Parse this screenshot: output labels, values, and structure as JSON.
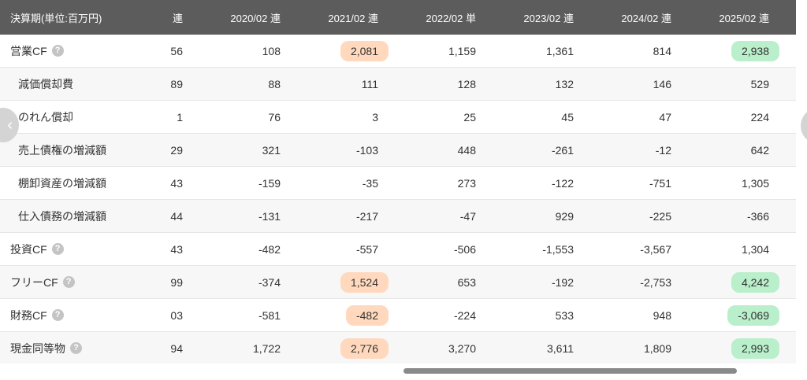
{
  "header": {
    "label": "決算期(単位:百万円)",
    "columns": [
      "連",
      "2020/02 連",
      "2021/02 連",
      "2022/02 単",
      "2023/02 連",
      "2024/02 連",
      "2025/02 連"
    ]
  },
  "help_glyph": "?",
  "nav": {
    "prev_glyph": "‹"
  },
  "colors": {
    "header_bg": "#5c5c5c",
    "highlight_orange": "#ffd8bd",
    "highlight_green": "#b9efcb"
  },
  "rows": [
    {
      "label": "営業CF",
      "values": [
        "56",
        "108",
        "2,081",
        "1,159",
        "1,361",
        "814",
        "2,938"
      ]
    },
    {
      "label": "減価償却費",
      "values": [
        "89",
        "88",
        "111",
        "128",
        "132",
        "146",
        "529"
      ]
    },
    {
      "label": "のれん償却",
      "values": [
        "1",
        "76",
        "3",
        "25",
        "45",
        "47",
        "224"
      ]
    },
    {
      "label": "売上債権の増減額",
      "values": [
        "29",
        "321",
        "-103",
        "448",
        "-261",
        "-12",
        "642"
      ]
    },
    {
      "label": "棚卸資産の増減額",
      "values": [
        "43",
        "-159",
        "-35",
        "273",
        "-122",
        "-751",
        "1,305"
      ]
    },
    {
      "label": "仕入債務の増減額",
      "values": [
        "44",
        "-131",
        "-217",
        "-47",
        "929",
        "-225",
        "-366"
      ]
    },
    {
      "label": "投資CF",
      "values": [
        "43",
        "-482",
        "-557",
        "-506",
        "-1,553",
        "-3,567",
        "1,304"
      ]
    },
    {
      "label": "フリーCF",
      "values": [
        "99",
        "-374",
        "1,524",
        "653",
        "-192",
        "-2,753",
        "4,242"
      ]
    },
    {
      "label": "財務CF",
      "values": [
        "03",
        "-581",
        "-482",
        "-224",
        "533",
        "948",
        "-3,069"
      ]
    },
    {
      "label": "現金同等物",
      "values": [
        "94",
        "1,722",
        "2,776",
        "3,270",
        "3,611",
        "1,809",
        "2,993"
      ]
    }
  ]
}
